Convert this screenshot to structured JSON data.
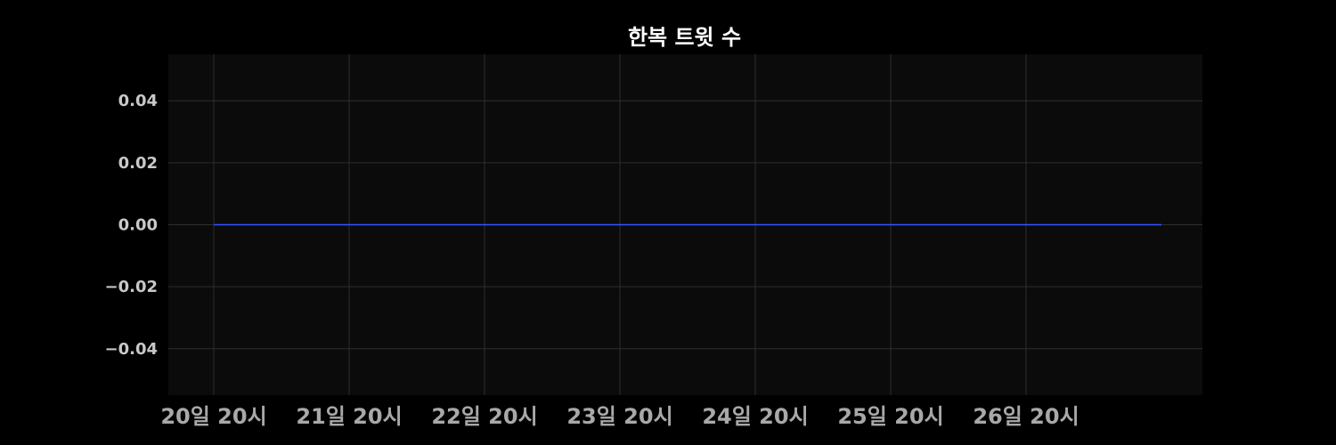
{
  "colors": {
    "background": "#000000",
    "plot_background": "#0b0b0b",
    "grid": "#2e2e2e",
    "series": "#3355ff",
    "title": "#ffffff",
    "tick_text": "#c8c8c8"
  },
  "chart_data": {
    "type": "line",
    "title": "한복 트윗 수",
    "xlabel": "",
    "ylabel": "",
    "grid": true,
    "legend": "none",
    "x_ticks": [
      "20일 20시",
      "21일 20시",
      "22일 20시",
      "23일 20시",
      "24일 20시",
      "25일 20시",
      "26일 20시"
    ],
    "y_ticks": [
      0.04,
      0.02,
      0.0,
      -0.02,
      -0.04
    ],
    "y_tick_labels": [
      "0.04",
      "0.02",
      "0.00",
      "−0.02",
      "−0.04"
    ],
    "ylim": [
      -0.055,
      0.055
    ],
    "series": [
      {
        "x": [
          "20일 20시",
          "21일 20시",
          "22일 20시",
          "23일 20시",
          "24일 20시",
          "25일 20시",
          "26일 20시",
          "27일 20시"
        ],
        "y": [
          0,
          0,
          0,
          0,
          0,
          0,
          0,
          0
        ]
      }
    ]
  }
}
